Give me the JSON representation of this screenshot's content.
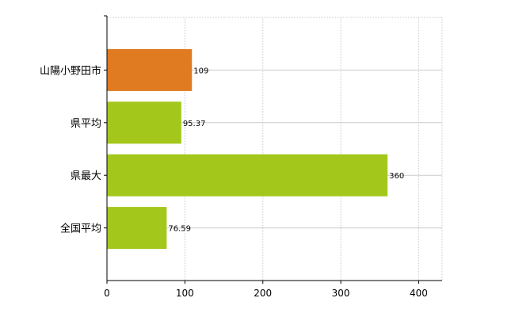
{
  "chart_data": {
    "type": "bar",
    "orientation": "horizontal",
    "categories": [
      "山陽小野田市",
      "県平均",
      "県最大",
      "全国平均"
    ],
    "values": [
      109,
      95.37,
      360,
      76.59
    ],
    "value_labels": [
      "109",
      "95.37",
      "360",
      "76.59"
    ],
    "bar_colors": [
      "#e07b22",
      "#a3c81b",
      "#a3c81b",
      "#a3c81b"
    ],
    "xlim": [
      0,
      430
    ],
    "xticks": [
      0,
      100,
      200,
      300,
      400
    ],
    "grid": true,
    "gridline_color": "#cccccc",
    "axis_color": "#000000",
    "legend": "none"
  }
}
